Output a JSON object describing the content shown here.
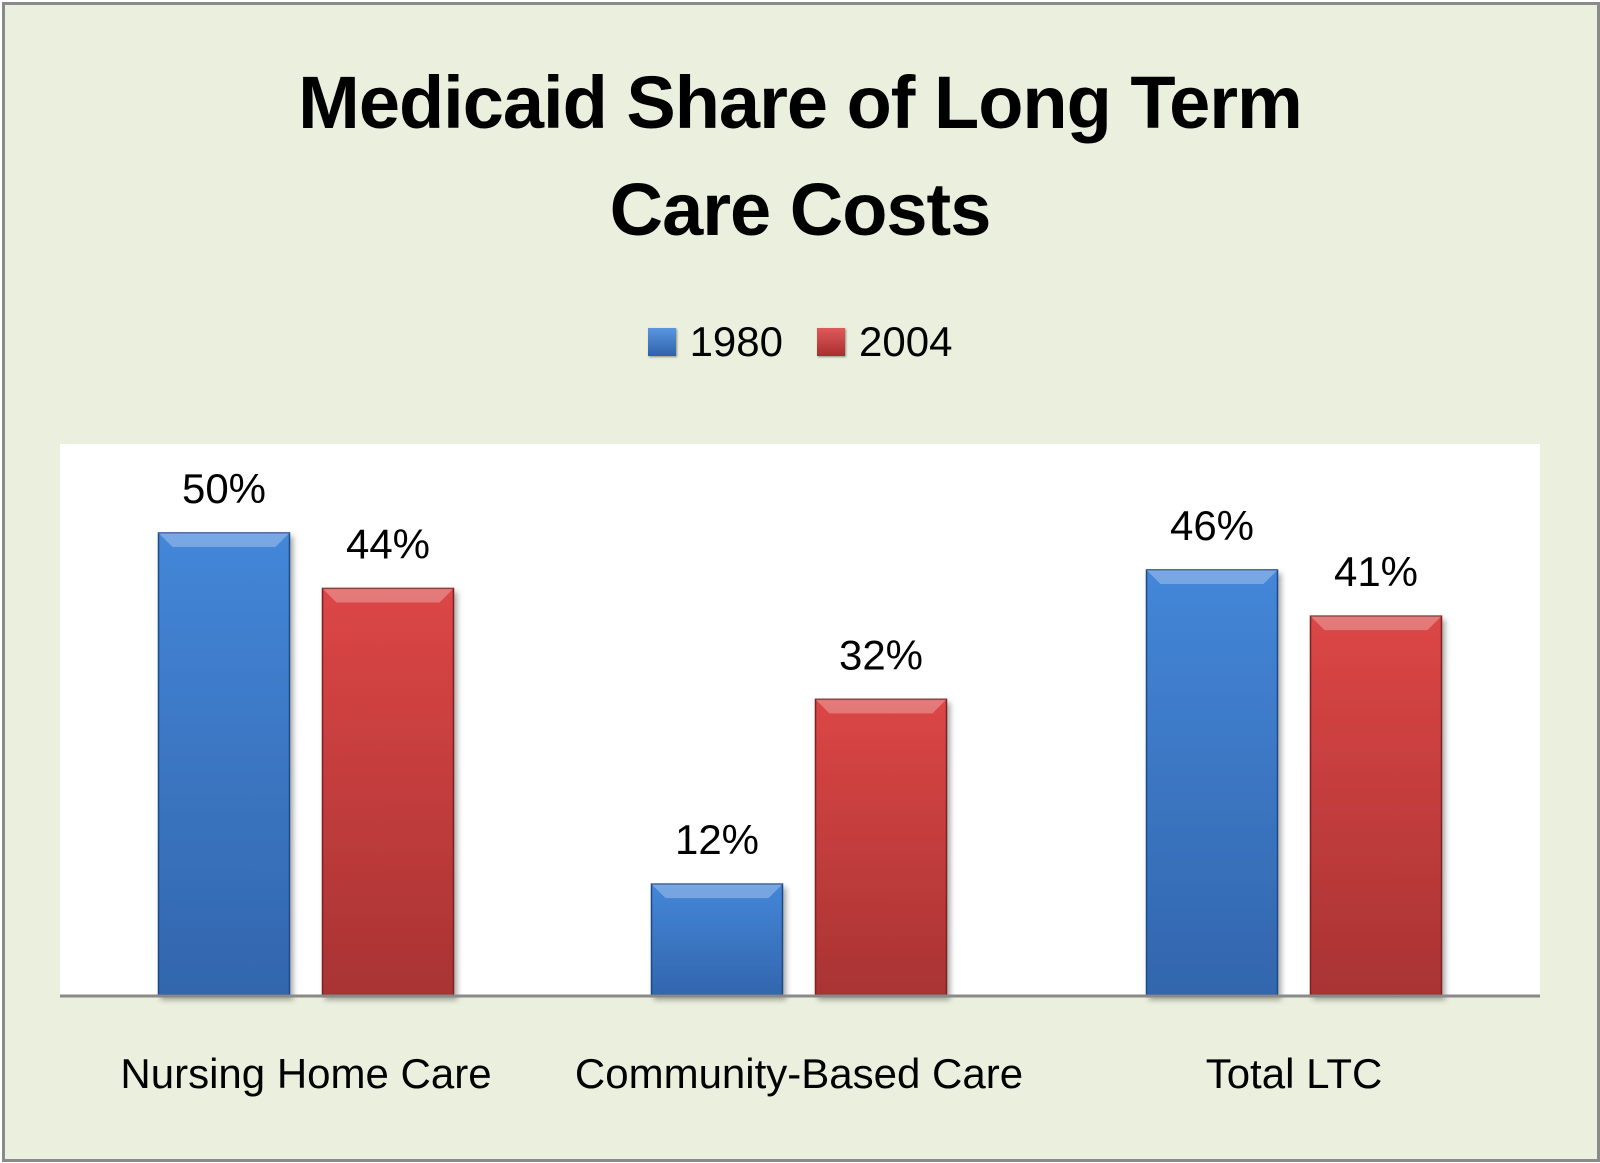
{
  "chart_data": {
    "type": "bar",
    "title": "Medicaid Share of Long Term Care Costs",
    "title_lines": [
      "Medicaid Share of Long Term",
      "Care Costs"
    ],
    "categories": [
      "Nursing Home Care",
      "Community-Based Care",
      "Total LTC"
    ],
    "series": [
      {
        "name": "1980",
        "values": [
          50,
          12,
          46
        ],
        "labels": [
          "50%",
          "12%",
          "46%"
        ],
        "color": "#3c78c8"
      },
      {
        "name": "2004",
        "values": [
          44,
          32,
          41
        ],
        "labels": [
          "44%",
          "32%",
          "41%"
        ],
        "color": "#c83a3a"
      }
    ],
    "unit": "%",
    "legend": "top",
    "grid": false,
    "y_axis_visible": false,
    "background": "#ebefdd",
    "plot_background": "#ffffff"
  }
}
